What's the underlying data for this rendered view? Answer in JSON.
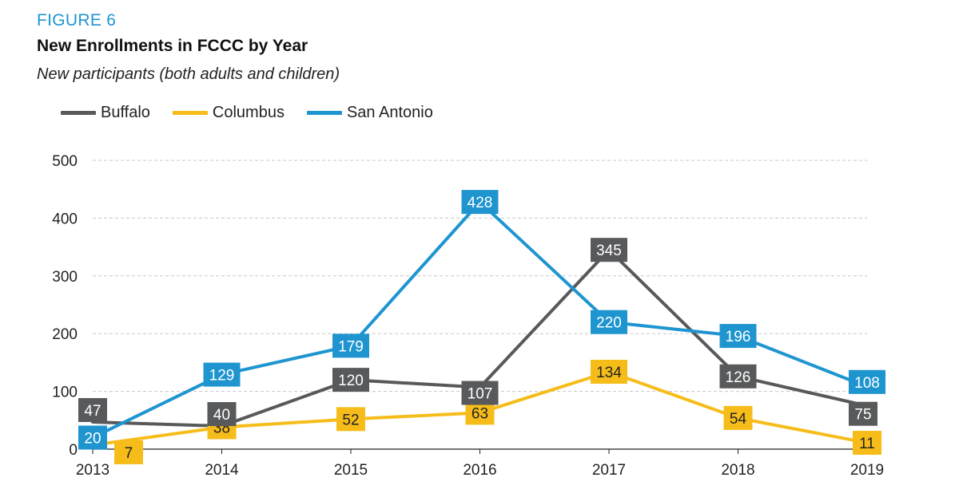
{
  "header": {
    "figure_label": "FIGURE 6",
    "title": "New Enrollments in FCCC by Year",
    "subtitle": "New participants (both adults and children)"
  },
  "colors": {
    "buffalo": "#58595b",
    "columbus": "#f6bd1a",
    "san_antonio": "#1f95d0",
    "accent": "#1f95d0",
    "gridline": "#c8c8c8"
  },
  "chart_data": {
    "type": "line",
    "title": "New Enrollments in FCCC by Year",
    "subtitle": "New participants (both adults and children)",
    "xlabel": "",
    "ylabel": "",
    "categories": [
      "2013",
      "2014",
      "2015",
      "2016",
      "2017",
      "2018",
      "2019"
    ],
    "ylim": [
      0,
      500
    ],
    "yticks": [
      0,
      100,
      200,
      300,
      400,
      500
    ],
    "grid": true,
    "legend_position": "top-left",
    "series": [
      {
        "name": "Buffalo",
        "color": "#58595b",
        "label_text_color": "#ffffff",
        "values": [
          47,
          40,
          120,
          107,
          345,
          126,
          75
        ],
        "labels": [
          "47",
          "40",
          "120",
          "107",
          "345",
          "126",
          "75"
        ]
      },
      {
        "name": "Columbus",
        "color": "#f6bd1a",
        "label_text_color": "#222222",
        "values": [
          7,
          38,
          52,
          63,
          134,
          54,
          11
        ],
        "labels": [
          "7",
          "38",
          "52",
          "63",
          "134",
          "54",
          "11"
        ]
      },
      {
        "name": "San Antonio",
        "color": "#1f95d0",
        "label_text_color": "#ffffff",
        "values": [
          20,
          129,
          179,
          428,
          220,
          196,
          108
        ],
        "labels": [
          "20",
          "129",
          "179",
          "428",
          "220",
          "196",
          "108"
        ]
      }
    ]
  }
}
